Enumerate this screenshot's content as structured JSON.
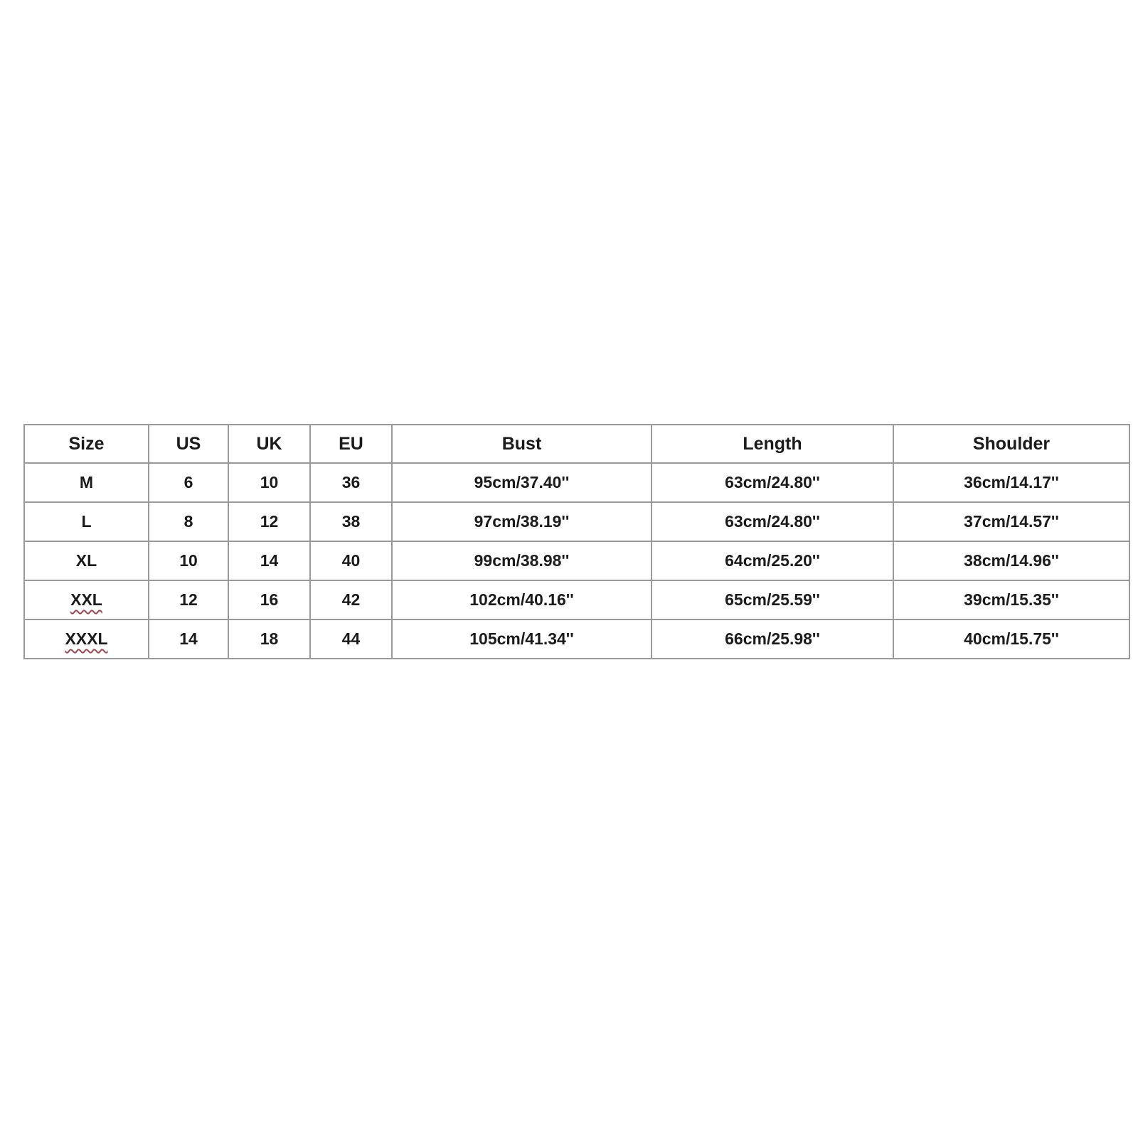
{
  "page": {
    "background_color": "#ffffff",
    "text_color": "#1b1b1b",
    "border_color": "#9a9a9a",
    "squiggle_color": "#a3464e"
  },
  "chart_data": {
    "type": "table",
    "columns": [
      "Size",
      "US",
      "UK",
      "EU",
      "Bust",
      "Length",
      "Shoulder"
    ],
    "rows": [
      [
        "M",
        "6",
        "10",
        "36",
        "95cm/37.40''",
        "63cm/24.80''",
        "36cm/14.17''"
      ],
      [
        "L",
        "8",
        "12",
        "38",
        "97cm/38.19''",
        "63cm/24.80''",
        "37cm/14.57''"
      ],
      [
        "XL",
        "10",
        "14",
        "40",
        "99cm/38.98''",
        "64cm/25.20''",
        "38cm/14.96''"
      ],
      [
        "XXL",
        "12",
        "16",
        "42",
        "102cm/40.16''",
        "65cm/25.59''",
        "39cm/15.35''"
      ],
      [
        "XXXL",
        "14",
        "18",
        "44",
        "105cm/41.34''",
        "66cm/25.98''",
        "40cm/15.75''"
      ]
    ],
    "squiggle_underlined_cells": [
      "XXL",
      "XXXL"
    ],
    "layout": {
      "grid": "all-borders",
      "alignment": "center"
    }
  }
}
